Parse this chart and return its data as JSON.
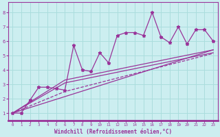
{
  "xlabel": "Windchill (Refroidissement éolien,°C)",
  "bg_color": "#cceef0",
  "line_color": "#993399",
  "grid_color": "#aadddd",
  "spine_color": "#993399",
  "xmin": -0.5,
  "xmax": 23.5,
  "ymin": 0.5,
  "ymax": 8.7,
  "yticks": [
    1,
    2,
    3,
    4,
    5,
    6,
    7,
    8
  ],
  "xticks": [
    0,
    1,
    2,
    3,
    4,
    5,
    6,
    7,
    8,
    9,
    10,
    11,
    12,
    13,
    14,
    15,
    16,
    17,
    18,
    19,
    20,
    21,
    22,
    23
  ],
  "jagged_x": [
    0,
    1,
    2,
    3,
    4,
    5,
    6,
    7,
    8,
    9,
    10,
    11,
    12,
    13,
    14,
    15,
    16,
    17,
    18,
    19,
    20,
    21,
    22,
    23
  ],
  "jagged_y": [
    1.0,
    1.0,
    1.9,
    2.8,
    2.8,
    2.7,
    2.6,
    5.7,
    4.0,
    3.9,
    5.2,
    4.5,
    6.4,
    6.6,
    6.6,
    6.4,
    8.0,
    6.3,
    5.9,
    7.0,
    5.8,
    6.8,
    6.8,
    6.0
  ],
  "trend1_x": [
    0,
    23
  ],
  "trend1_y": [
    1.0,
    5.4
  ],
  "trend2_x": [
    0,
    6,
    23
  ],
  "trend2_y": [
    1.0,
    3.1,
    5.2
  ],
  "trend3_x": [
    0,
    6,
    23
  ],
  "trend3_y": [
    1.0,
    2.5,
    5.15
  ],
  "trend4_x": [
    0,
    6,
    23
  ],
  "trend4_y": [
    1.0,
    3.3,
    5.4
  ]
}
